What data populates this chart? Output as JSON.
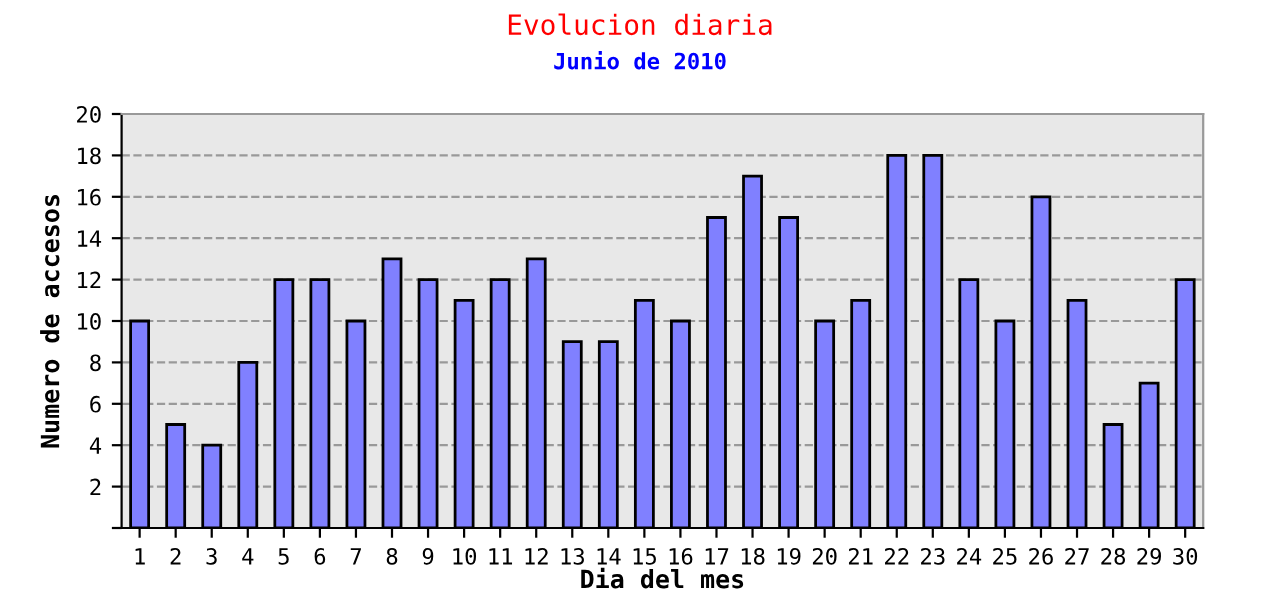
{
  "chart_data": {
    "type": "bar",
    "title": "Evolucion diaria",
    "subtitle": "Junio de 2010",
    "xlabel": "Dia del mes",
    "ylabel": "Numero de accesos",
    "categories": [
      "1",
      "2",
      "3",
      "4",
      "5",
      "6",
      "7",
      "8",
      "9",
      "10",
      "11",
      "12",
      "13",
      "14",
      "15",
      "16",
      "17",
      "18",
      "19",
      "20",
      "21",
      "22",
      "23",
      "24",
      "25",
      "26",
      "27",
      "28",
      "29",
      "30"
    ],
    "values": [
      10,
      5,
      4,
      8,
      12,
      12,
      10,
      13,
      12,
      11,
      12,
      13,
      9,
      9,
      11,
      10,
      15,
      17,
      15,
      10,
      11,
      18,
      18,
      12,
      10,
      16,
      11,
      5,
      7,
      12
    ],
    "color": "#8080ff",
    "ylim": [
      0,
      20
    ],
    "yticks": [
      {
        "value": 0,
        "label": null
      },
      2,
      4,
      6,
      8,
      10,
      12,
      14,
      16,
      18,
      20
    ],
    "grid": "y",
    "line_style": "dashed"
  }
}
